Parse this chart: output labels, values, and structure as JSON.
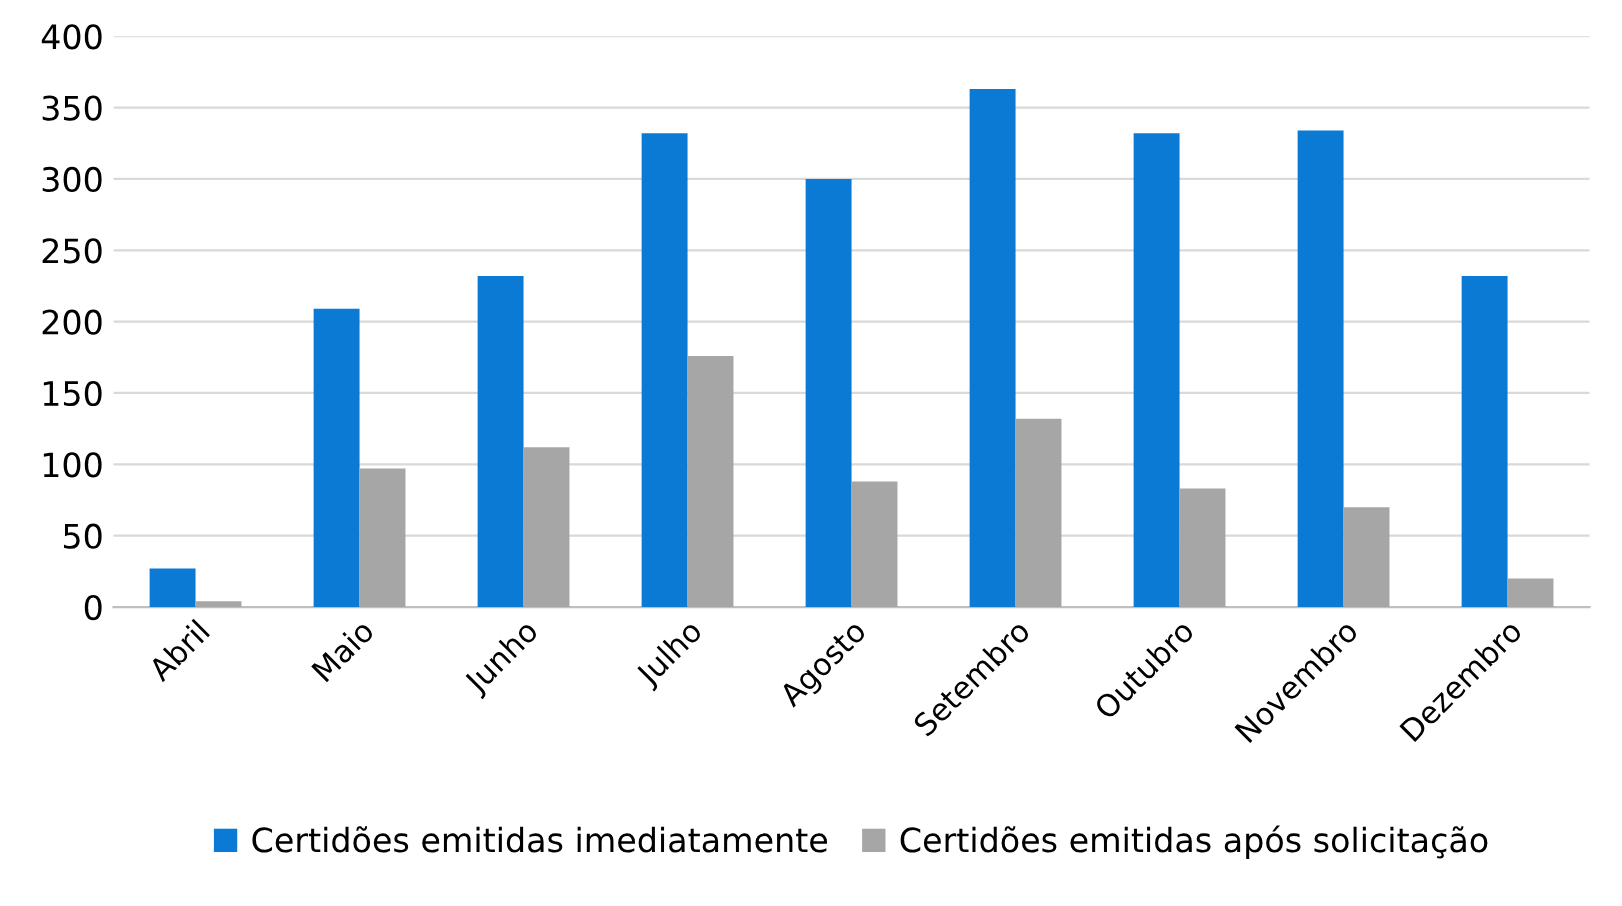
{
  "chart_data": {
    "type": "bar",
    "categories": [
      "Abril",
      "Maio",
      "Junho",
      "Julho",
      "Agosto",
      "Setembro",
      "Outubro",
      "Novembro",
      "Dezembro"
    ],
    "series": [
      {
        "name": "Certidões emitidas imediatamente",
        "color": "#0a7ad4",
        "values": [
          27,
          209,
          232,
          332,
          300,
          363,
          332,
          334,
          232
        ]
      },
      {
        "name": "Certidões emitidas após solicitação",
        "color": "#a6a6a6",
        "values": [
          4,
          97,
          112,
          176,
          88,
          132,
          83,
          70,
          20
        ]
      }
    ],
    "ylim": [
      0,
      400
    ],
    "yticks": [
      0,
      50,
      100,
      150,
      200,
      250,
      300,
      350,
      400
    ],
    "grid": "y",
    "legend": "bottom"
  }
}
